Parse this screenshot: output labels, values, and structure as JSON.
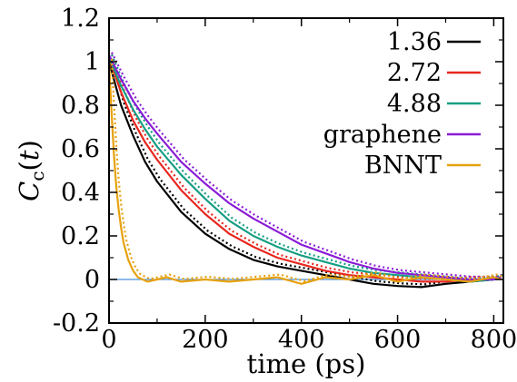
{
  "chart_data": {
    "type": "line",
    "xlabel": "time (ps)",
    "ylabel": "C_c(t)",
    "xlim": [
      0,
      820
    ],
    "ylim": [
      -0.2,
      1.2
    ],
    "x_ticks": [
      "0",
      "200",
      "400",
      "600",
      "800"
    ],
    "y_ticks": [
      "-0.2",
      "0",
      "0.2",
      "0.4",
      "0.6",
      "0.8",
      "1",
      "1.2"
    ],
    "grid": false,
    "legend": "top-right",
    "reference_line": {
      "y": 0,
      "color": "#4a90d9"
    },
    "series": [
      {
        "name": "1.36",
        "color": "#000000",
        "x": [
          0,
          25,
          50,
          75,
          100,
          150,
          200,
          250,
          300,
          350,
          400,
          450,
          500,
          550,
          600,
          650,
          700,
          750,
          800,
          815
        ],
        "y": [
          1.0,
          0.8,
          0.66,
          0.54,
          0.45,
          0.31,
          0.21,
          0.14,
          0.09,
          0.06,
          0.04,
          0.02,
          0.0,
          -0.02,
          -0.03,
          -0.035,
          -0.02,
          -0.01,
          0.0,
          0.01
        ]
      },
      {
        "name": "2.72",
        "color": "#e8261d",
        "x": [
          0,
          25,
          50,
          75,
          100,
          150,
          200,
          250,
          300,
          350,
          400,
          450,
          500,
          550,
          600,
          650,
          700,
          750,
          800,
          815
        ],
        "y": [
          1.02,
          0.86,
          0.73,
          0.63,
          0.55,
          0.41,
          0.3,
          0.21,
          0.15,
          0.1,
          0.07,
          0.04,
          0.02,
          0.01,
          0.0,
          -0.01,
          -0.01,
          0.0,
          0.0,
          0.01
        ]
      },
      {
        "name": "4.88",
        "color": "#169e83",
        "x": [
          0,
          25,
          50,
          75,
          100,
          150,
          200,
          250,
          300,
          350,
          400,
          450,
          500,
          550,
          600,
          650,
          700,
          750,
          800,
          815
        ],
        "y": [
          1.02,
          0.89,
          0.78,
          0.69,
          0.61,
          0.48,
          0.37,
          0.27,
          0.2,
          0.15,
          0.11,
          0.08,
          0.05,
          0.03,
          0.02,
          0.01,
          0.0,
          -0.01,
          0.0,
          0.01
        ]
      },
      {
        "name": "graphene",
        "color": "#8a1cd6",
        "x": [
          0,
          25,
          50,
          75,
          100,
          150,
          200,
          250,
          300,
          350,
          400,
          450,
          500,
          550,
          600,
          650,
          700,
          750,
          800,
          815
        ],
        "y": [
          1.03,
          0.92,
          0.82,
          0.74,
          0.67,
          0.54,
          0.44,
          0.35,
          0.28,
          0.22,
          0.16,
          0.12,
          0.08,
          0.05,
          0.03,
          0.02,
          0.01,
          0.0,
          0.0,
          0.01
        ]
      },
      {
        "name": "BNNT",
        "color": "#e6a10e",
        "x": [
          0,
          5,
          10,
          15,
          20,
          25,
          30,
          40,
          50,
          60,
          80,
          100,
          120,
          150,
          200,
          250,
          300,
          350,
          400,
          450,
          500,
          550,
          600,
          650,
          700,
          750,
          800,
          815
        ],
        "y": [
          1.0,
          0.78,
          0.58,
          0.43,
          0.32,
          0.24,
          0.17,
          0.09,
          0.04,
          0.01,
          -0.01,
          0.0,
          0.01,
          -0.01,
          0.0,
          -0.01,
          0.0,
          0.01,
          -0.02,
          0.01,
          0.0,
          0.02,
          -0.01,
          0.01,
          0.0,
          -0.01,
          0.01,
          0.0
        ]
      }
    ]
  }
}
